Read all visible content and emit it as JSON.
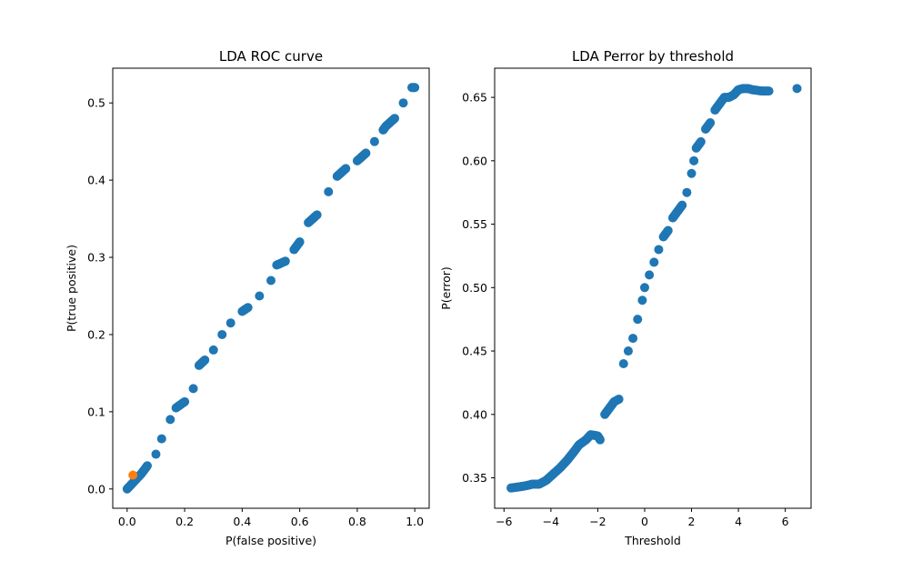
{
  "chart_data": [
    {
      "type": "scatter",
      "title": "LDA ROC curve",
      "xlabel": "P(false positive)",
      "ylabel": "P(true positive)",
      "xlim": [
        -0.05,
        1.05
      ],
      "ylim": [
        -0.025,
        0.545
      ],
      "xticks": [
        0.0,
        0.2,
        0.4,
        0.6,
        0.8,
        1.0
      ],
      "xtick_labels": [
        "0.0",
        "0.2",
        "0.4",
        "0.6",
        "0.8",
        "1.0"
      ],
      "yticks": [
        0.0,
        0.1,
        0.2,
        0.3,
        0.4,
        0.5
      ],
      "ytick_labels": [
        "0.0",
        "0.1",
        "0.2",
        "0.3",
        "0.4",
        "0.5"
      ],
      "grid": false,
      "series": [
        {
          "color": "#1f77b4",
          "x": [
            0.0,
            0.02,
            0.05,
            0.07,
            0.1,
            0.12,
            0.15,
            0.17,
            0.2,
            0.23,
            0.25,
            0.27,
            0.3,
            0.33,
            0.36,
            0.4,
            0.42,
            0.46,
            0.5,
            0.52,
            0.55,
            0.58,
            0.6,
            0.63,
            0.66,
            0.7,
            0.73,
            0.76,
            0.8,
            0.83,
            0.86,
            0.89,
            0.9,
            0.93,
            0.96,
            0.99,
            1.0
          ],
          "y": [
            0.0,
            0.008,
            0.02,
            0.03,
            0.045,
            0.065,
            0.09,
            0.105,
            0.113,
            0.13,
            0.16,
            0.167,
            0.18,
            0.2,
            0.215,
            0.23,
            0.235,
            0.25,
            0.27,
            0.29,
            0.295,
            0.31,
            0.32,
            0.345,
            0.355,
            0.385,
            0.405,
            0.415,
            0.425,
            0.435,
            0.45,
            0.465,
            0.47,
            0.48,
            0.5,
            0.52,
            0.52
          ]
        },
        {
          "color": "#ff7f0e",
          "x": [
            0.02
          ],
          "y": [
            0.018
          ]
        }
      ]
    },
    {
      "type": "scatter",
      "title": "LDA Perror by threshold",
      "xlabel": "Threshold",
      "ylabel": "P(error)",
      "xlim": [
        -6.4,
        7.1
      ],
      "ylim": [
        0.326,
        0.673
      ],
      "xticks": [
        -6,
        -4,
        -2,
        0,
        2,
        4,
        6
      ],
      "xtick_labels": [
        "−6",
        "−4",
        "−2",
        "0",
        "2",
        "4",
        "6"
      ],
      "yticks": [
        0.35,
        0.4,
        0.45,
        0.5,
        0.55,
        0.6,
        0.65
      ],
      "ytick_labels": [
        "0.35",
        "0.40",
        "0.45",
        "0.50",
        "0.55",
        "0.60",
        "0.65"
      ],
      "grid": false,
      "series": [
        {
          "color": "#1f77b4",
          "x": [
            -5.7,
            -5.3,
            -5.0,
            -4.8,
            -4.5,
            -4.2,
            -3.9,
            -3.6,
            -3.3,
            -3.0,
            -2.8,
            -2.5,
            -2.3,
            -2.0,
            -1.9,
            -1.7,
            -1.5,
            -1.3,
            -1.1,
            -0.9,
            -0.7,
            -0.5,
            -0.3,
            -0.1,
            0.0,
            0.2,
            0.4,
            0.6,
            0.8,
            1.0,
            1.2,
            1.4,
            1.6,
            1.8,
            2.0,
            2.1,
            2.2,
            2.4,
            2.6,
            2.8,
            3.0,
            3.2,
            3.4,
            3.6,
            3.8,
            4.0,
            4.2,
            4.4,
            4.6,
            5.0,
            5.3,
            6.5
          ],
          "y": [
            0.342,
            0.343,
            0.344,
            0.345,
            0.345,
            0.348,
            0.353,
            0.358,
            0.364,
            0.371,
            0.376,
            0.38,
            0.384,
            0.383,
            0.38,
            0.4,
            0.405,
            0.41,
            0.412,
            0.44,
            0.45,
            0.46,
            0.475,
            0.49,
            0.5,
            0.51,
            0.52,
            0.53,
            0.54,
            0.545,
            0.555,
            0.56,
            0.565,
            0.575,
            0.59,
            0.6,
            0.61,
            0.615,
            0.625,
            0.63,
            0.64,
            0.645,
            0.65,
            0.65,
            0.652,
            0.656,
            0.657,
            0.657,
            0.656,
            0.655,
            0.655,
            0.657
          ]
        }
      ]
    }
  ]
}
